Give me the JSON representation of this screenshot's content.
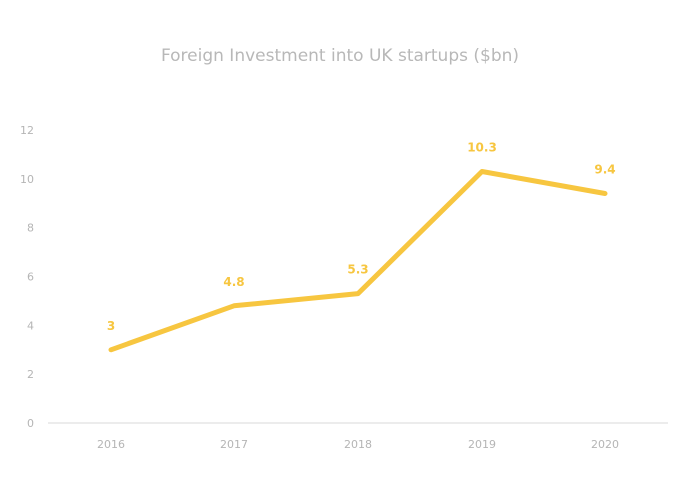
{
  "chart_data": {
    "type": "line",
    "title": "Foreign Investment into UK startups ($bn)",
    "xlabel": "",
    "ylabel": "",
    "categories": [
      "2016",
      "2017",
      "2018",
      "2019",
      "2020"
    ],
    "series": [
      {
        "values": [
          3,
          4.8,
          5.3,
          10.3,
          9.4
        ],
        "labels": [
          "3",
          "4.8",
          "5.3",
          "10.3",
          "9.4"
        ]
      }
    ],
    "y_ticks": [
      "0",
      "2",
      "4",
      "6",
      "8",
      "10",
      "12"
    ],
    "ylim": [
      0,
      12
    ],
    "grid": false,
    "legend": "none",
    "colors": {
      "line": "#f7c640",
      "axis": "#d9d9d9",
      "text": "#b5b5b5"
    }
  }
}
